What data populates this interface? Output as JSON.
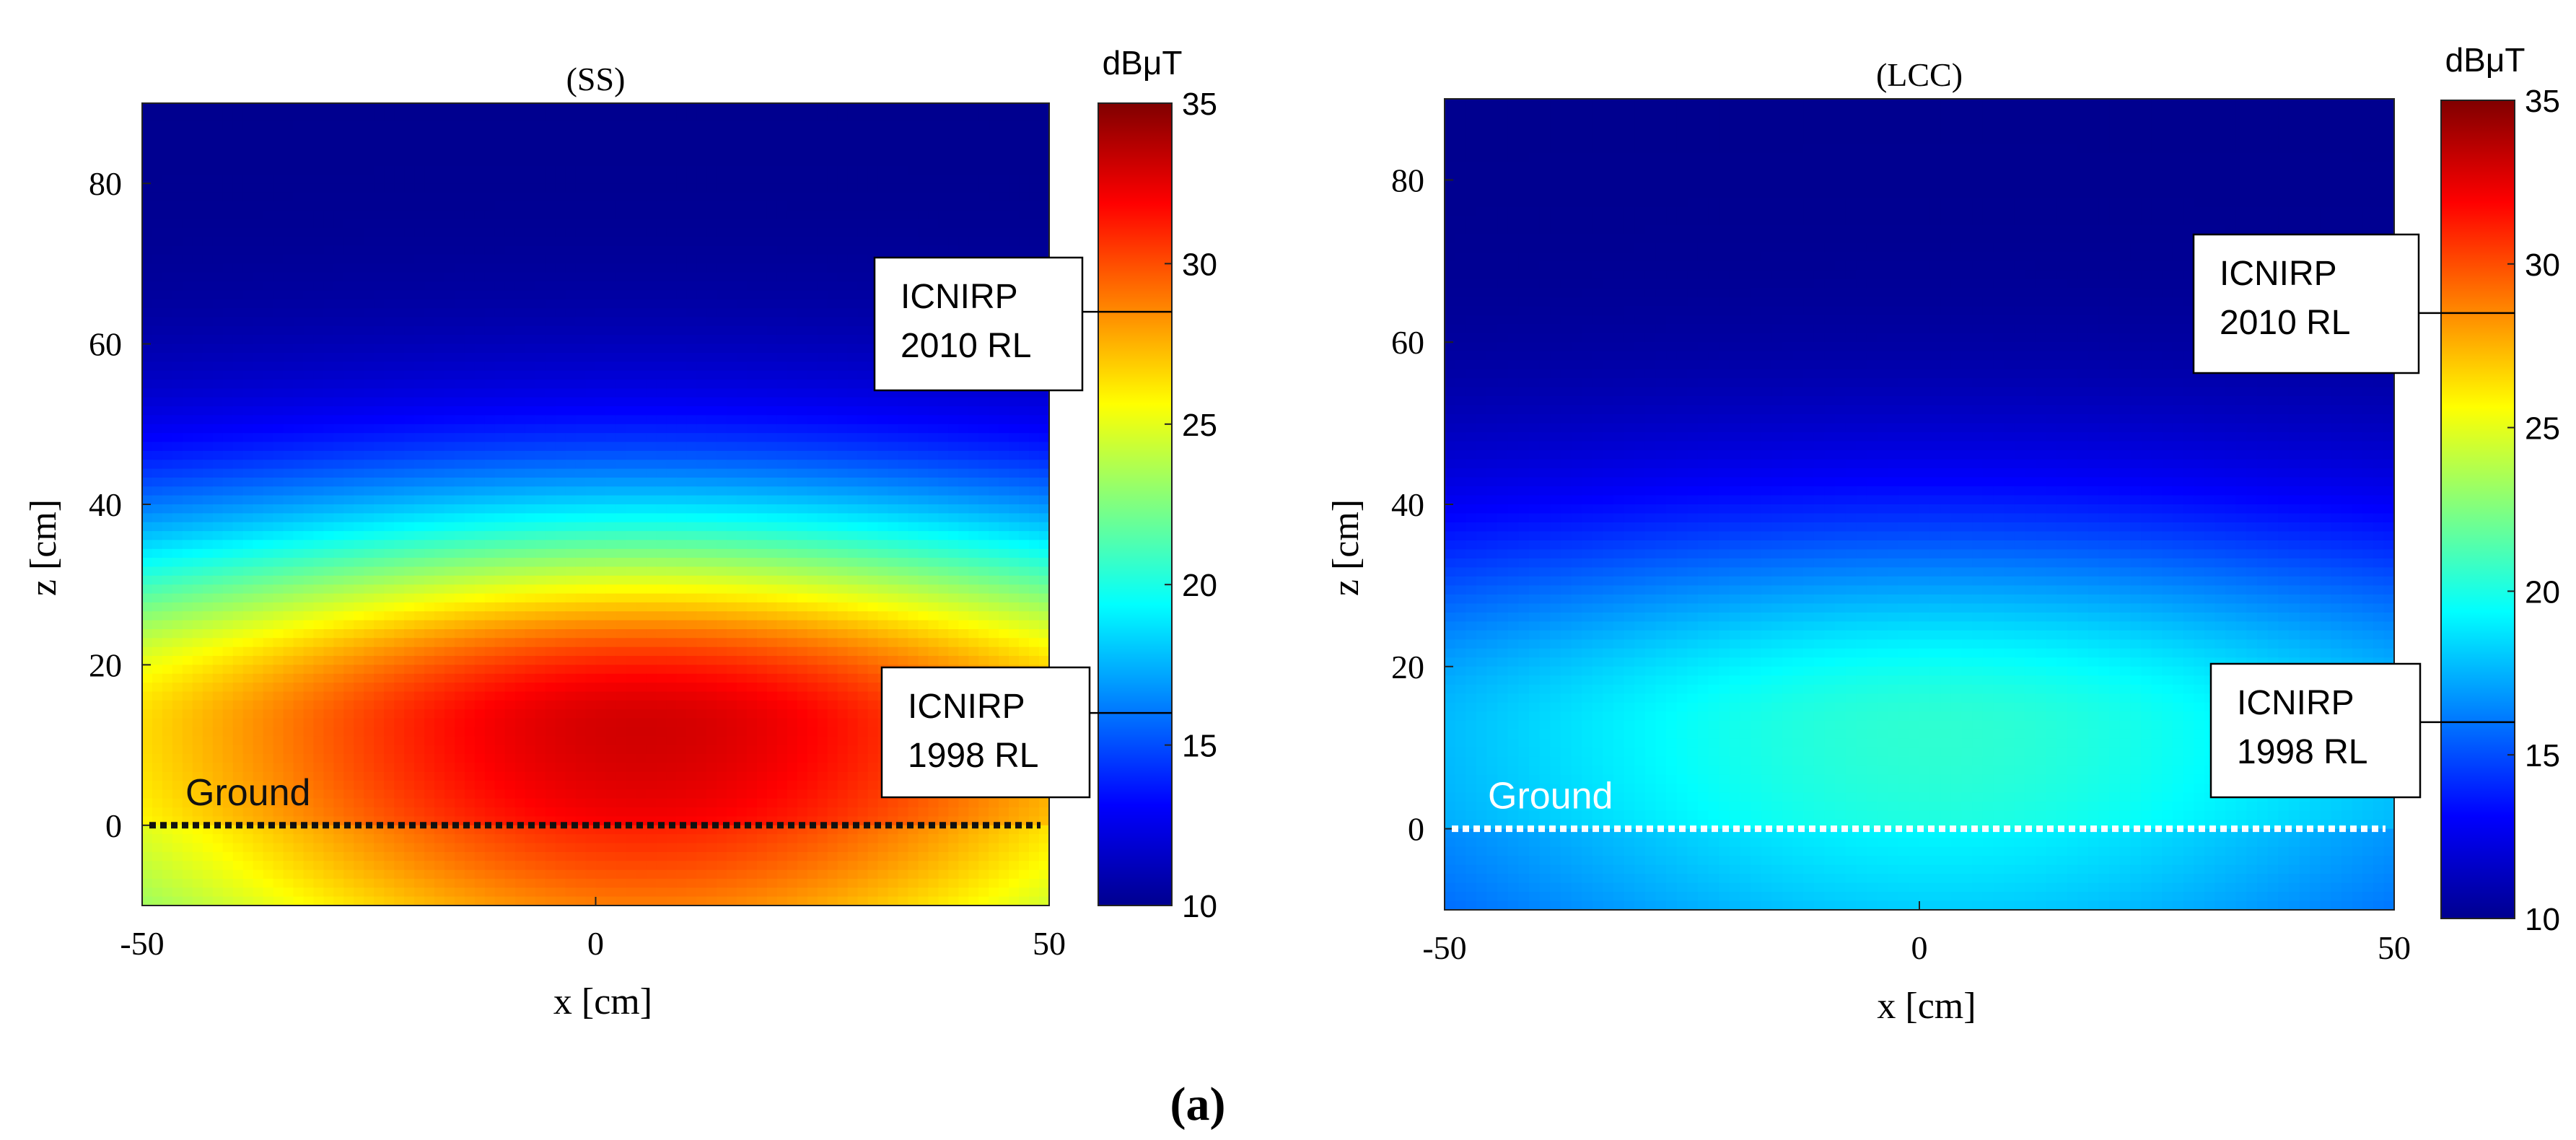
{
  "figure_label": "(a)",
  "colors": {
    "jet": [
      "#00008f",
      "#0000ff",
      "#0080ff",
      "#00ffff",
      "#80ff80",
      "#ffff00",
      "#ff8000",
      "#ff0000",
      "#800000"
    ],
    "ground_ss": "#111111",
    "ground_lcc": "#ffffff"
  },
  "chart_data": [
    {
      "type": "heatmap",
      "title": "(SS)",
      "xlabel": "x [cm]",
      "ylabel": "z [cm]",
      "xlim": [
        -50,
        50
      ],
      "ylim": [
        -10,
        90
      ],
      "x_ticks": [
        "-50",
        "0",
        "50"
      ],
      "y_ticks": [
        "0",
        "20",
        "40",
        "60",
        "80"
      ],
      "grid": false,
      "colorbar": {
        "label": "dBμT",
        "range": [
          10,
          35
        ],
        "ticks": [
          "10",
          "15",
          "20",
          "25",
          "30",
          "35"
        ]
      },
      "field": {
        "peak_db": 33,
        "peak_x": 5,
        "peak_z": 12,
        "floor_db": 10
      },
      "ground": {
        "label": "Ground",
        "z": 0
      },
      "annotations": [
        {
          "line1": "ICNIRP",
          "line2": "2010 RL",
          "value_db": 28.5
        },
        {
          "line1": "ICNIRP",
          "line2": "1998 RL",
          "value_db": 16
        }
      ]
    },
    {
      "type": "heatmap",
      "title": "(LCC)",
      "xlabel": "x [cm]",
      "ylabel": "z [cm]",
      "xlim": [
        -50,
        50
      ],
      "ylim": [
        -10,
        90
      ],
      "x_ticks": [
        "-50",
        "0",
        "50"
      ],
      "y_ticks": [
        "0",
        "20",
        "40",
        "60",
        "80"
      ],
      "grid": false,
      "colorbar": {
        "label": "dBμT",
        "range": [
          10,
          35
        ],
        "ticks": [
          "10",
          "15",
          "20",
          "25",
          "30",
          "35"
        ]
      },
      "field": {
        "peak_db": 20.5,
        "peak_x": 2,
        "peak_z": 12,
        "floor_db": 10
      },
      "ground": {
        "label": "Ground",
        "z": 0
      },
      "annotations": [
        {
          "line1": "ICNIRP",
          "line2": "2010 RL",
          "value_db": 28.5
        },
        {
          "line1": "ICNIRP",
          "line2": "1998 RL",
          "value_db": 16
        }
      ]
    }
  ]
}
